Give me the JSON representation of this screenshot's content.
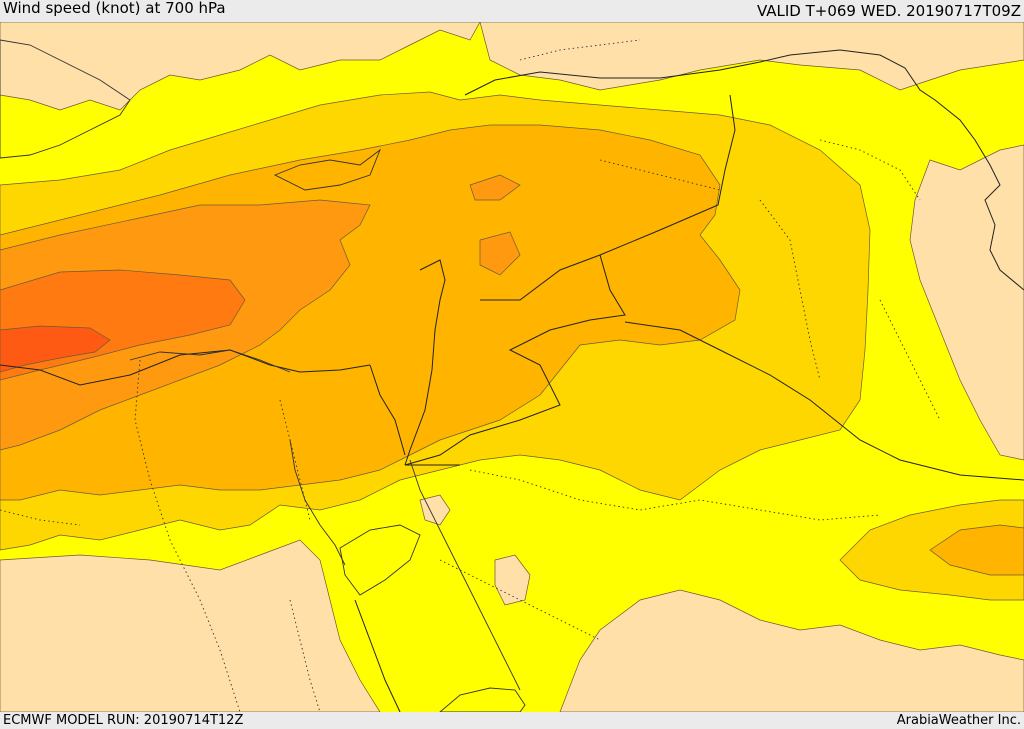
{
  "header": {
    "title": "Wind speed (knot) at 700 hPa",
    "valid_time": "VALID T+069 WED. 20190717T09Z"
  },
  "footer": {
    "model_run": "ECMWF MODEL RUN: 20190714T12Z",
    "credit": "ArabiaWeather Inc."
  },
  "map": {
    "variable": "Wind speed",
    "unit": "knot",
    "level": "700 hPa",
    "colors": {
      "sea_water": "#ffffff",
      "calm": "#ffe0a8",
      "band_1": "#ffff00",
      "band_2": "#ffd700",
      "band_3": "#ffb400",
      "band_4": "#ff9a10",
      "band_5": "#ff7a10",
      "band_6": "#ff5a14"
    }
  }
}
